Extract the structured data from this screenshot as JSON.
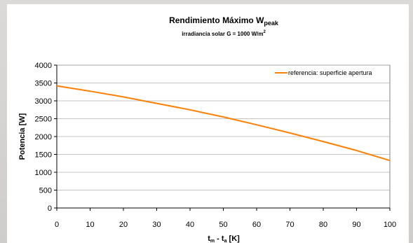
{
  "chart_data": {
    "type": "line",
    "title_main": "Rendimiento Máximo  W",
    "title_sub": "peak",
    "subtitle_main": "irradiancia solar  G = 1000 W/m",
    "subtitle_sup": "2",
    "ylabel": "Potencia [W]",
    "xlabel_t1": "t",
    "xlabel_s1": "m",
    "xlabel_mid": " - t",
    "xlabel_s2": "a",
    "xlabel_end": "   [K]",
    "xlim": [
      0,
      100
    ],
    "ylim": [
      0,
      4000
    ],
    "xticks": [
      "0",
      "10",
      "20",
      "30",
      "40",
      "50",
      "60",
      "70",
      "80",
      "90",
      "100"
    ],
    "yticks": [
      "0",
      "500",
      "1000",
      "1500",
      "2000",
      "2500",
      "3000",
      "3500",
      "4000"
    ],
    "grid": true,
    "legend_position": "top-right",
    "series": [
      {
        "name": "referencia: superficie apertura",
        "color": "#ff7f00",
        "x": [
          0,
          10,
          20,
          30,
          40,
          50,
          60,
          70,
          80,
          90,
          100
        ],
        "y": [
          3420,
          3270,
          3110,
          2930,
          2750,
          2550,
          2330,
          2100,
          1860,
          1610,
          1330
        ]
      }
    ]
  }
}
